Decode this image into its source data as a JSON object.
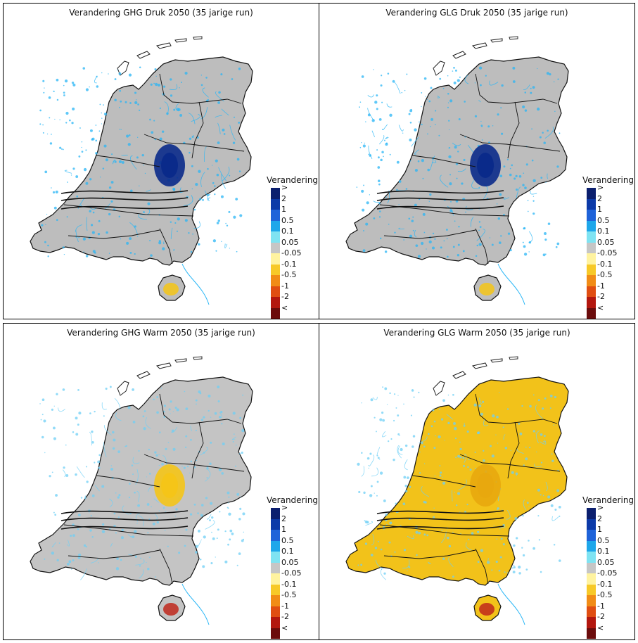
{
  "panels": [
    {
      "title": "Verandering GHG Druk 2050 (35 jarige run)",
      "fill": "#bdbdbd",
      "hotspot": "#0a2a8a",
      "speckle": "#29b6f6",
      "accent": "#f5c518"
    },
    {
      "title": "Verandering GLG Druk 2050 (35 jarige run)",
      "fill": "#bdbdbd",
      "hotspot": "#0a2a8a",
      "speckle": "#29b6f6",
      "accent": "#f5c518"
    },
    {
      "title": "Verandering GHG Warm 2050 (35 jarige run)",
      "fill": "#c4c4c4",
      "hotspot": "#f5c518",
      "speckle": "#6ecff6",
      "accent": "#c0281c"
    },
    {
      "title": "Verandering GLG Warm 2050 (35 jarige run)",
      "fill": "#f2c21a",
      "hotspot": "#e8a80e",
      "speckle": "#6ecff6",
      "accent": "#c0281c"
    }
  ],
  "legend": {
    "title": "Verandering",
    "labels": [
      ">",
      "2",
      "1",
      "0.5",
      "0.1",
      "0.05",
      "-0.05",
      "-0.1",
      "-0.5",
      "-1",
      "-2",
      "<"
    ],
    "colors": [
      "#0b1f6e",
      "#0c3aa8",
      "#1f63d9",
      "#1ea7ea",
      "#7fe3f2",
      "#c6c6c6",
      "#fff3a0",
      "#f7c928",
      "#f18c16",
      "#e04e12",
      "#b3170f",
      "#6b0c0c"
    ]
  }
}
